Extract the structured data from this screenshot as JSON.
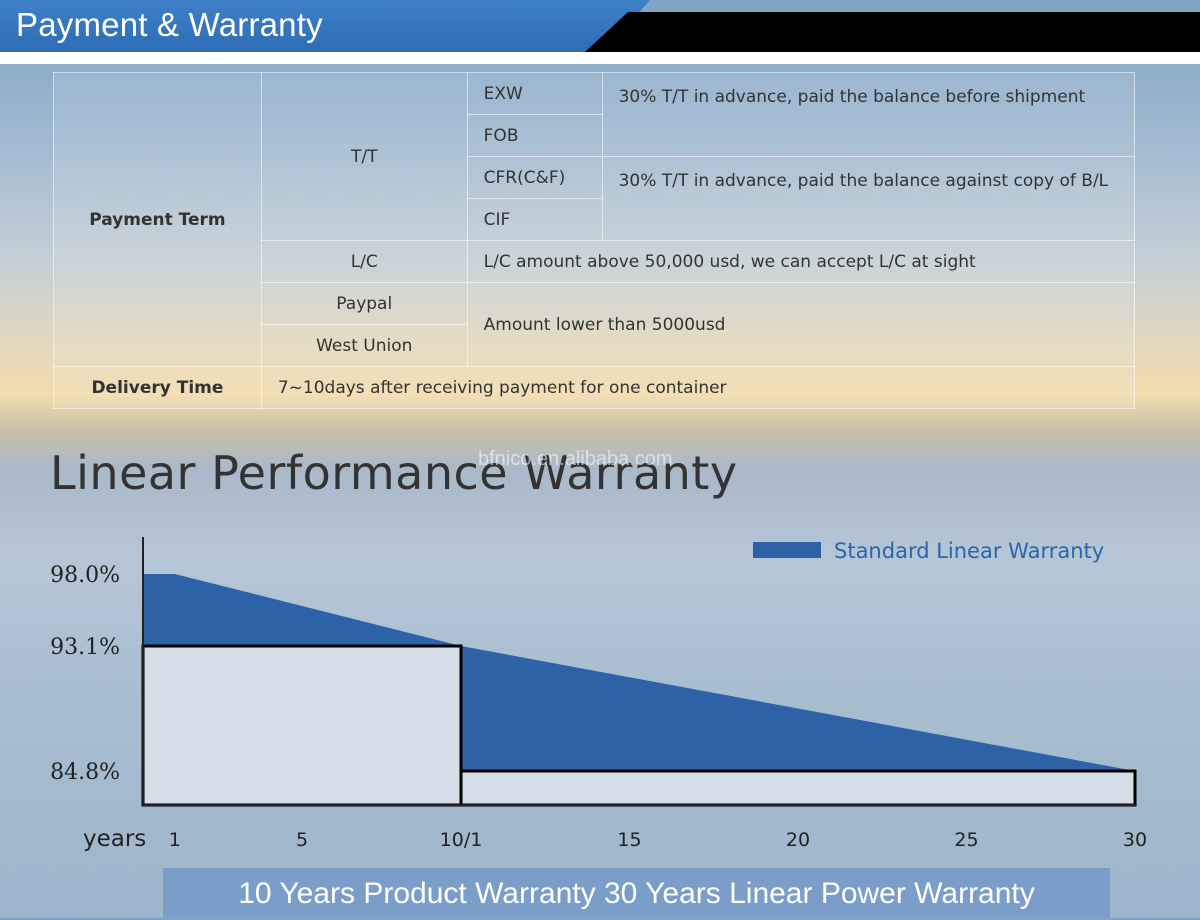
{
  "header": {
    "title": "Payment & Warranty"
  },
  "payment_table": {
    "payment_term_label": "Payment Term",
    "tt_label": "T/T",
    "terms": [
      "EXW",
      "FOB",
      "CFR(C&F)",
      "CIF"
    ],
    "tt_note_1": "30% T/T in advance, paid the balance before shipment",
    "tt_note_2": "30% T/T in advance, paid the balance against copy of B/L",
    "lc_label": "L/C",
    "lc_note": "L/C amount above 50,000 usd, we can accept L/C at sight",
    "paypal_label": "Paypal",
    "west_union_label": "West Union",
    "small_amount_note": "Amount lower than 5000usd",
    "delivery_label": "Delivery Time",
    "delivery_note": "7~10days after receiving payment for one container"
  },
  "section_title": "Linear Performance Warranty",
  "watermark": "bfnico.en.alibaba.com",
  "chart_data": {
    "type": "area",
    "title": "Linear Performance Warranty",
    "xlabel": "years",
    "ylabel": "",
    "x_ticks": [
      1,
      5,
      10,
      15,
      20,
      25,
      30
    ],
    "x_tick_labels": [
      "1",
      "5",
      "10/1",
      "15",
      "20",
      "25",
      "30"
    ],
    "y_ticks": [
      98.0,
      93.1,
      84.8
    ],
    "y_tick_labels": [
      "98.0%",
      "93.1%",
      "84.8%"
    ],
    "xlim": [
      0,
      30
    ],
    "series": [
      {
        "name": "Standard Linear Warranty",
        "color": "#2d63a6",
        "x": [
          0,
          1,
          10,
          30
        ],
        "y": [
          98.0,
          98.0,
          93.1,
          84.8
        ]
      }
    ],
    "step_guarantee": {
      "x": [
        0,
        10,
        10,
        30
      ],
      "y": [
        93.1,
        93.1,
        84.8,
        84.8
      ]
    },
    "legend_position": "top-right",
    "grid": false
  },
  "footer_banner": "10 Years Product Warranty   30 Years Linear Power Warranty"
}
